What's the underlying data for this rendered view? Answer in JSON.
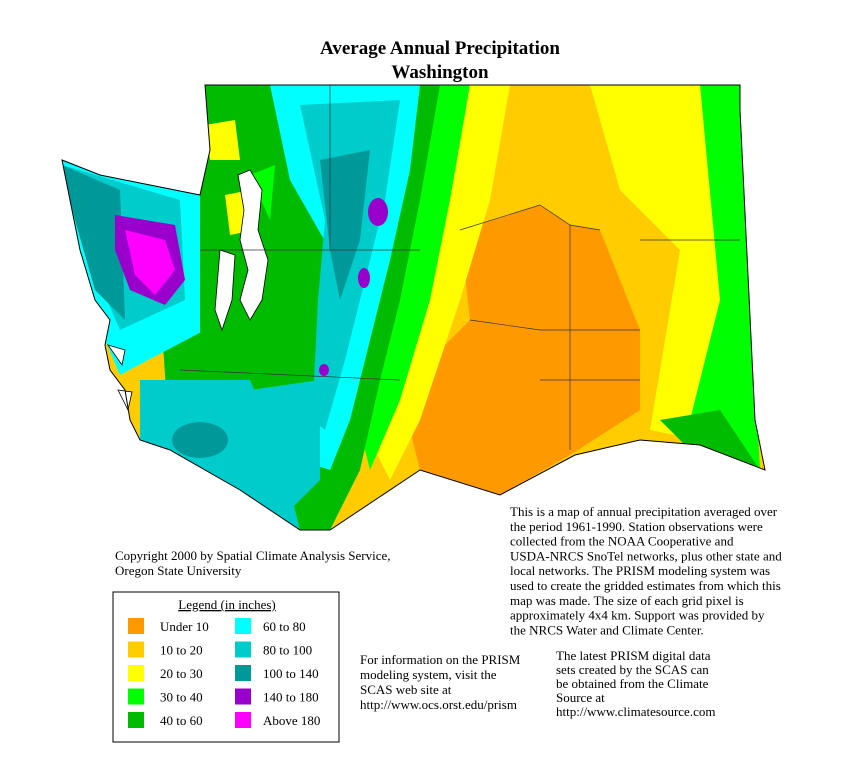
{
  "title": "Average Annual Precipitation",
  "subtitle": "Washington",
  "copyright": [
    "Copyright 2000 by Spatial Climate Analysis Service,",
    "Oregon State University"
  ],
  "description": [
    "This is a map of annual precipitation averaged over",
    "the period 1961-1990. Station observations were",
    "collected from the NOAA Cooperative and",
    "USDA-NRCS SnoTel networks, plus other state and",
    "local networks.  The PRISM modeling system was",
    "used to create the gridded estimates from which this",
    "map was made.  The size of each grid pixel is",
    "approximately 4x4 km.  Support was provided by",
    "the NRCS Water and Climate Center."
  ],
  "legend": {
    "title": "Legend (in inches)",
    "items": [
      {
        "label": "Under 10",
        "color": "#ff9900"
      },
      {
        "label": "10 to 20",
        "color": "#ffcc00"
      },
      {
        "label": "20 to 30",
        "color": "#ffff00"
      },
      {
        "label": "30 to 40",
        "color": "#00ff00"
      },
      {
        "label": "40 to 60",
        "color": "#00bb00"
      },
      {
        "label": "60 to 80",
        "color": "#00ffff"
      },
      {
        "label": "80 to 100",
        "color": "#00cccc"
      },
      {
        "label": "100 to 140",
        "color": "#009999"
      },
      {
        "label": "140 to 180",
        "color": "#9900cc"
      },
      {
        "label": "Above 180",
        "color": "#ff00ff"
      }
    ]
  },
  "prism_info": [
    "For information on the PRISM",
    "modeling system, visit the",
    "SCAS web site at",
    " http://www.ocs.orst.edu/prism"
  ],
  "data_info": [
    "The latest PRISM digital data",
    "sets created by the SCAS can",
    "be obtained from the Climate",
    "Source at",
    "http://www.climatesource.com"
  ]
}
